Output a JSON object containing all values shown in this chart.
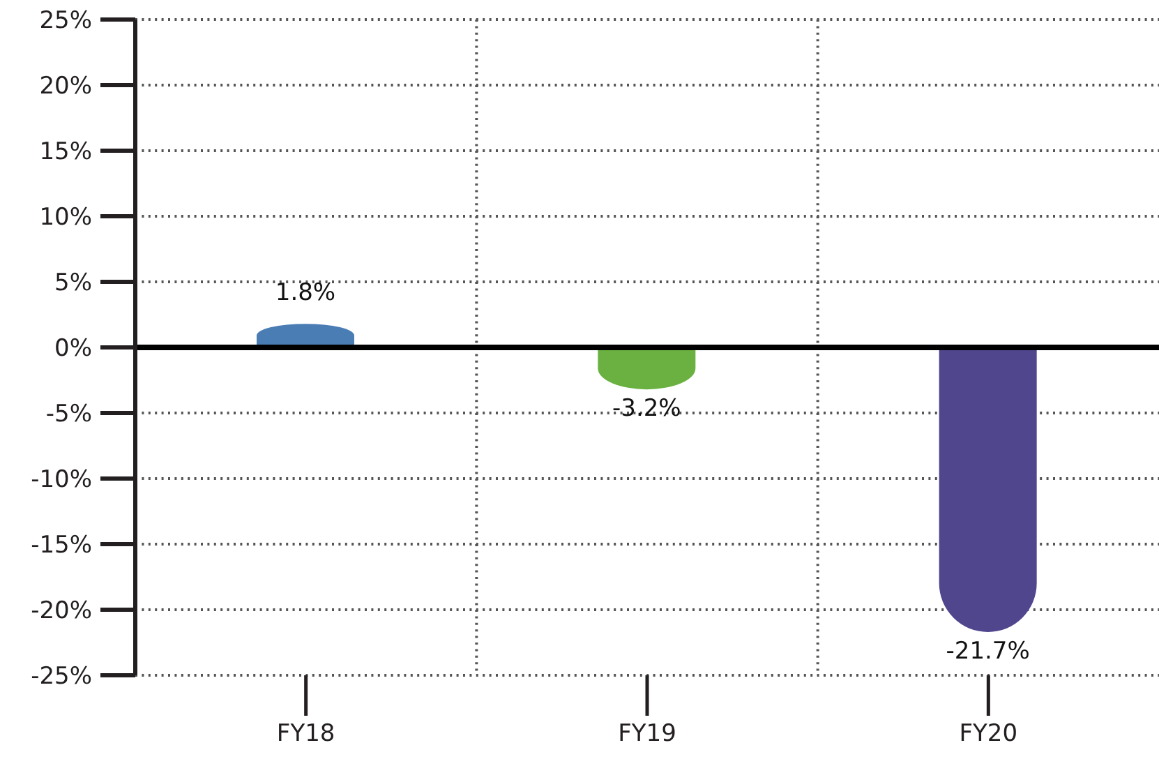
{
  "chart_data": {
    "type": "bar",
    "categories": [
      "FY18",
      "FY19",
      "FY20"
    ],
    "values": [
      1.8,
      -3.2,
      -21.7
    ],
    "colors": [
      "#4a7db4",
      "#6ab141",
      "#4f468e"
    ],
    "value_labels": [
      "1.8%",
      "-3.2%",
      "-21.7%"
    ],
    "ylim": [
      -25,
      25
    ],
    "yticks": [
      {
        "value": -25,
        "label": "-25%"
      },
      {
        "value": -20,
        "label": "-20%"
      },
      {
        "value": -15,
        "label": "-15%"
      },
      {
        "value": -10,
        "label": "-10%"
      },
      {
        "value": -5,
        "label": "-5%"
      },
      {
        "value": 0,
        "label": "0%"
      },
      {
        "value": 5,
        "label": "5%"
      },
      {
        "value": 10,
        "label": "10%"
      },
      {
        "value": 15,
        "label": "15%"
      },
      {
        "value": 20,
        "label": "20%"
      },
      {
        "value": 25,
        "label": "25%"
      }
    ],
    "grid": true,
    "ref_lines": [
      {
        "axis": "y",
        "value": 0,
        "color": "#000000"
      }
    ]
  }
}
